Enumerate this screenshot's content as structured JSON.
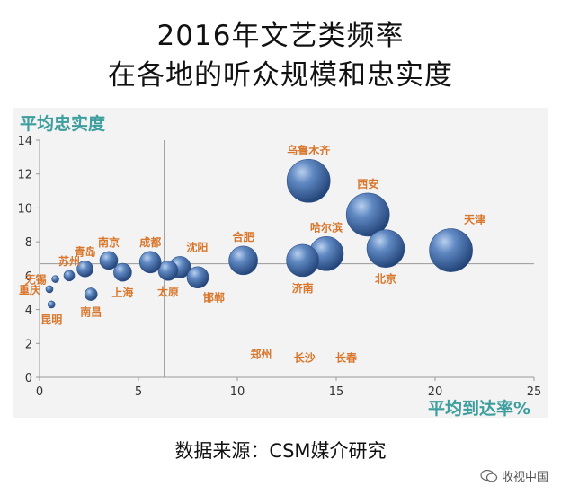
{
  "title_line1": "2016年文艺类频率",
  "title_line2": "在各地的听众规模和忠实度",
  "source": "数据来源：CSM媒介研究",
  "watermark": "收视中国",
  "chart_data": {
    "type": "scatter",
    "title": "2016年文艺类频率 在各地的听众规模和忠实度",
    "xlabel": "平均到达率%",
    "ylabel": "平均忠实度",
    "xlim": [
      0,
      25
    ],
    "ylim": [
      0,
      14
    ],
    "xticks": [
      0,
      5,
      10,
      15,
      20,
      25
    ],
    "yticks": [
      0,
      2,
      4,
      6,
      8,
      10,
      12,
      14
    ],
    "reference_lines": {
      "x": 6.3,
      "y": 6.7
    },
    "bubble_color": "#4a74ad",
    "label_color": "#d9762b",
    "axis_color": "#9a9a9a",
    "points": [
      {
        "city": "乌鲁木齐",
        "x": 13.6,
        "y": 11.6,
        "size": 24,
        "label_pos": "top"
      },
      {
        "city": "西安",
        "x": 16.6,
        "y": 9.6,
        "size": 24,
        "label_pos": "top"
      },
      {
        "city": "天津",
        "x": 20.8,
        "y": 7.5,
        "size": 24,
        "label_pos": "top-right"
      },
      {
        "city": "北京",
        "x": 17.5,
        "y": 7.6,
        "size": 21,
        "label_pos": "bottom"
      },
      {
        "city": "哈尔滨",
        "x": 14.5,
        "y": 7.3,
        "size": 19,
        "label_pos": "top"
      },
      {
        "city": "济南",
        "x": 13.3,
        "y": 6.9,
        "size": 18,
        "label_pos": "bottom"
      },
      {
        "city": "合肥",
        "x": 10.3,
        "y": 6.9,
        "size": 16,
        "label_pos": "top"
      },
      {
        "city": "沈阳",
        "x": 7.1,
        "y": 6.5,
        "size": 12,
        "label_pos": "top-right"
      },
      {
        "city": "邯郸",
        "x": 8.0,
        "y": 5.9,
        "size": 12,
        "label_pos": "bottom-right"
      },
      {
        "city": "太原",
        "x": 6.5,
        "y": 6.3,
        "size": 11,
        "label_pos": "bottom"
      },
      {
        "city": "成都",
        "x": 5.6,
        "y": 6.8,
        "size": 12,
        "label_pos": "top"
      },
      {
        "city": "南京",
        "x": 3.5,
        "y": 6.9,
        "size": 10,
        "label_pos": "top"
      },
      {
        "city": "上海",
        "x": 4.2,
        "y": 6.2,
        "size": 10,
        "label_pos": "bottom"
      },
      {
        "city": "青岛",
        "x": 2.3,
        "y": 6.4,
        "size": 9,
        "label_pos": "top"
      },
      {
        "city": "南昌",
        "x": 2.6,
        "y": 4.9,
        "size": 7,
        "label_pos": "bottom"
      },
      {
        "city": "苏州",
        "x": 1.5,
        "y": 6.0,
        "size": 6,
        "label_pos": "top"
      },
      {
        "city": "无锡",
        "x": 0.8,
        "y": 5.8,
        "size": 4,
        "label_pos": "left"
      },
      {
        "city": "重庆",
        "x": 0.5,
        "y": 5.2,
        "size": 4,
        "label_pos": "left"
      },
      {
        "city": "昆明",
        "x": 0.6,
        "y": 4.3,
        "size": 4,
        "label_pos": "bottom"
      },
      {
        "city": "郑州",
        "x": 11.2,
        "y": 1.4,
        "size": 0,
        "label_pos": "center"
      },
      {
        "city": "长沙",
        "x": 13.4,
        "y": 1.2,
        "size": 0,
        "label_pos": "center"
      },
      {
        "city": "长春",
        "x": 15.5,
        "y": 1.2,
        "size": 0,
        "label_pos": "center"
      }
    ]
  }
}
